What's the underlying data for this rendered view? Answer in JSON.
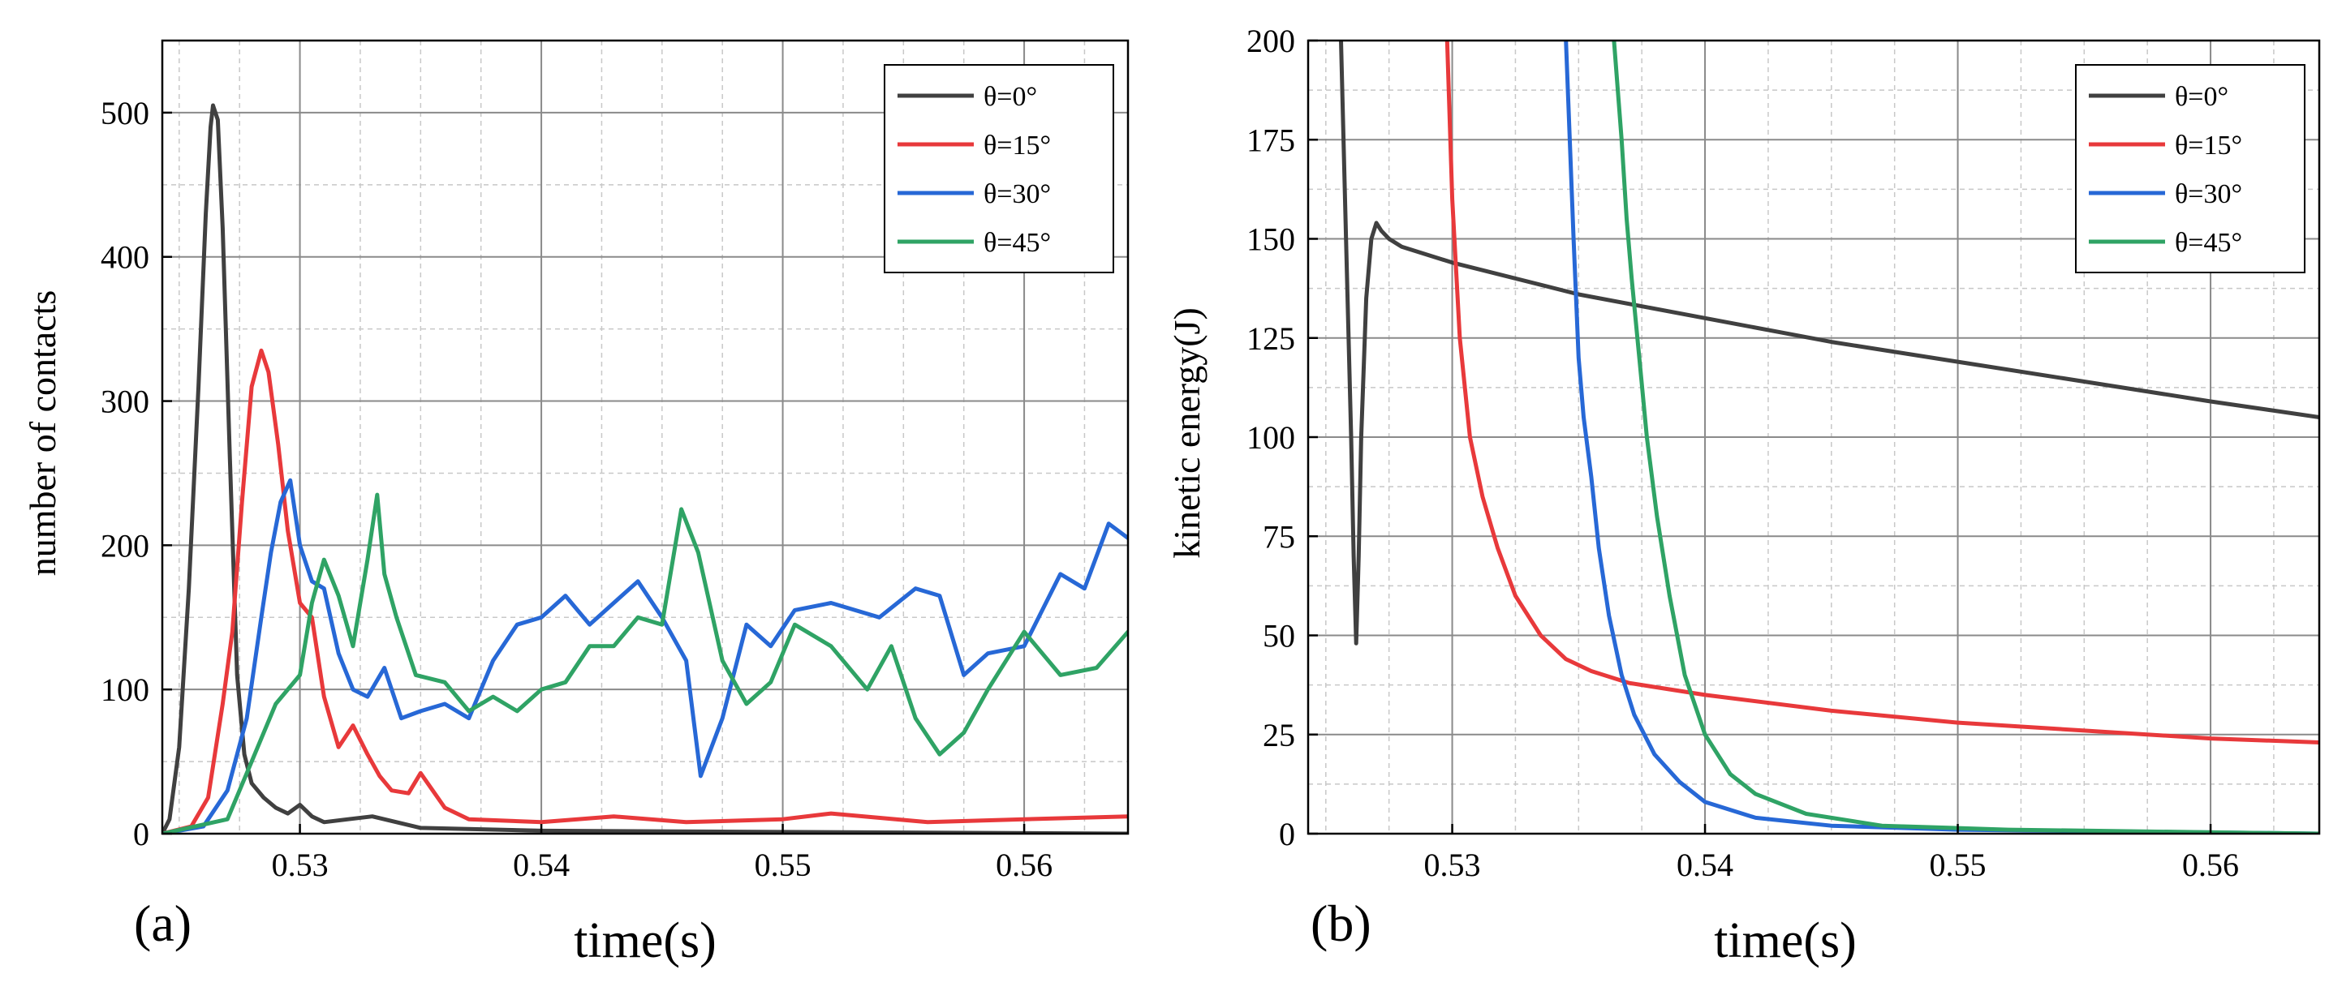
{
  "figure": {
    "colors": {
      "theta0": "#404040",
      "theta15": "#e8393b",
      "theta30": "#2768d6",
      "theta45": "#2fa365"
    }
  },
  "chart_data": [
    {
      "type": "line",
      "panel_label": "(a)",
      "xlabel": "time(s)",
      "ylabel": "number of contacts",
      "xlim": [
        0.5243,
        0.5643
      ],
      "ylim": [
        0,
        550
      ],
      "xticks": [
        0.53,
        0.54,
        0.55,
        0.56
      ],
      "xtick_labels": [
        "0.53",
        "0.54",
        "0.55",
        "0.56"
      ],
      "yticks": [
        0,
        100,
        200,
        300,
        400,
        500
      ],
      "ytick_labels": [
        "0",
        "100",
        "200",
        "300",
        "400",
        "500"
      ],
      "grid": true,
      "legend_position": "top-right",
      "series": [
        {
          "name": "θ=0°",
          "color_key": "theta0",
          "x": [
            0.5243,
            0.5246,
            0.525,
            0.5254,
            0.5258,
            0.5261,
            0.5263,
            0.5264,
            0.5266,
            0.5268,
            0.5271,
            0.5274,
            0.5277,
            0.528,
            0.5285,
            0.529,
            0.5295,
            0.53,
            0.5305,
            0.531,
            0.532,
            0.533,
            0.534,
            0.535,
            0.54,
            0.5643
          ],
          "y": [
            0,
            10,
            60,
            170,
            310,
            430,
            490,
            505,
            495,
            420,
            260,
            110,
            55,
            35,
            25,
            18,
            14,
            20,
            12,
            8,
            10,
            12,
            8,
            4,
            2,
            0
          ]
        },
        {
          "name": "θ=15°",
          "color_key": "theta15",
          "x": [
            0.5243,
            0.5255,
            0.5262,
            0.5268,
            0.5272,
            0.5276,
            0.528,
            0.5284,
            0.5287,
            0.5291,
            0.5295,
            0.53,
            0.5305,
            0.531,
            0.5316,
            0.5322,
            0.5328,
            0.5333,
            0.5338,
            0.5345,
            0.535,
            0.5355,
            0.536,
            0.537,
            0.54,
            0.543,
            0.546,
            0.55,
            0.552,
            0.556,
            0.56,
            0.5643
          ],
          "y": [
            0,
            5,
            25,
            90,
            140,
            230,
            310,
            335,
            320,
            270,
            210,
            160,
            150,
            95,
            60,
            75,
            55,
            40,
            30,
            28,
            42,
            30,
            18,
            10,
            8,
            12,
            8,
            10,
            14,
            8,
            10,
            12
          ]
        },
        {
          "name": "θ=30°",
          "color_key": "theta30",
          "x": [
            0.5243,
            0.526,
            0.527,
            0.5278,
            0.5284,
            0.5288,
            0.5292,
            0.5296,
            0.53,
            0.5305,
            0.531,
            0.5316,
            0.5322,
            0.5328,
            0.5335,
            0.5342,
            0.535,
            0.536,
            0.537,
            0.538,
            0.539,
            0.54,
            0.541,
            0.542,
            0.543,
            0.544,
            0.545,
            0.546,
            0.5466,
            0.5475,
            0.5485,
            0.5495,
            0.5505,
            0.552,
            0.554,
            0.5555,
            0.5565,
            0.5575,
            0.5585,
            0.56,
            0.5615,
            0.5625,
            0.5635,
            0.5643
          ],
          "y": [
            0,
            5,
            30,
            80,
            150,
            195,
            230,
            245,
            200,
            175,
            170,
            125,
            100,
            95,
            115,
            80,
            85,
            90,
            80,
            120,
            145,
            150,
            165,
            145,
            160,
            175,
            150,
            120,
            40,
            80,
            145,
            130,
            155,
            160,
            150,
            170,
            165,
            110,
            125,
            130,
            180,
            170,
            215,
            205
          ]
        },
        {
          "name": "θ=45°",
          "color_key": "theta45",
          "x": [
            0.5243,
            0.527,
            0.528,
            0.529,
            0.53,
            0.5305,
            0.531,
            0.5316,
            0.5322,
            0.5328,
            0.5332,
            0.5335,
            0.534,
            0.5348,
            0.536,
            0.537,
            0.538,
            0.539,
            0.54,
            0.541,
            0.542,
            0.543,
            0.544,
            0.545,
            0.5458,
            0.5465,
            0.5475,
            0.5485,
            0.5495,
            0.5505,
            0.552,
            0.5535,
            0.5545,
            0.5555,
            0.5565,
            0.5575,
            0.5585,
            0.56,
            0.5615,
            0.563,
            0.5643
          ],
          "y": [
            0,
            10,
            50,
            90,
            110,
            160,
            190,
            165,
            130,
            190,
            235,
            180,
            150,
            110,
            105,
            85,
            95,
            85,
            100,
            105,
            130,
            130,
            150,
            145,
            225,
            195,
            120,
            90,
            105,
            145,
            130,
            100,
            130,
            80,
            55,
            70,
            100,
            140,
            110,
            115,
            140
          ]
        }
      ]
    },
    {
      "type": "line",
      "panel_label": "(b)",
      "xlabel": "time(s)",
      "ylabel": "kinetic energy(J)",
      "xlim": [
        0.5243,
        0.5643
      ],
      "ylim": [
        0,
        200
      ],
      "xticks": [
        0.53,
        0.54,
        0.55,
        0.56
      ],
      "xtick_labels": [
        "0.53",
        "0.54",
        "0.55",
        "0.56"
      ],
      "yticks": [
        0,
        25,
        50,
        75,
        100,
        125,
        150,
        175,
        200
      ],
      "ytick_labels": [
        "0",
        "25",
        "50",
        "75",
        "100",
        "125",
        "150",
        "175",
        "200"
      ],
      "grid": true,
      "legend_position": "top-right",
      "series": [
        {
          "name": "θ=0°",
          "color_key": "theta0",
          "x": [
            0.5256,
            0.5258,
            0.526,
            0.5261,
            0.5262,
            0.5263,
            0.5264,
            0.5266,
            0.5268,
            0.527,
            0.5272,
            0.5275,
            0.528,
            0.53,
            0.535,
            0.54,
            0.545,
            0.55,
            0.555,
            0.56,
            0.5643
          ],
          "y": [
            200,
            150,
            100,
            70,
            48,
            70,
            100,
            135,
            150,
            154,
            152,
            150,
            148,
            144,
            136,
            130,
            124,
            119,
            114,
            109,
            105
          ]
        },
        {
          "name": "θ=15°",
          "color_key": "theta15",
          "x": [
            0.5298,
            0.53,
            0.5303,
            0.5307,
            0.5312,
            0.5318,
            0.5325,
            0.5335,
            0.5345,
            0.5355,
            0.537,
            0.54,
            0.545,
            0.55,
            0.555,
            0.56,
            0.5643
          ],
          "y": [
            200,
            160,
            125,
            100,
            85,
            72,
            60,
            50,
            44,
            41,
            38,
            35,
            31,
            28,
            26,
            24,
            23
          ]
        },
        {
          "name": "θ=30°",
          "color_key": "theta30",
          "x": [
            0.5345,
            0.5348,
            0.535,
            0.5352,
            0.5355,
            0.5358,
            0.5362,
            0.5367,
            0.5372,
            0.538,
            0.539,
            0.54,
            0.542,
            0.545,
            0.55,
            0.5643
          ],
          "y": [
            200,
            150,
            120,
            105,
            90,
            72,
            55,
            40,
            30,
            20,
            13,
            8,
            4,
            2,
            1,
            0
          ]
        },
        {
          "name": "θ=45°",
          "color_key": "theta45",
          "x": [
            0.5364,
            0.5367,
            0.5369,
            0.5371,
            0.5374,
            0.5377,
            0.5381,
            0.5386,
            0.5392,
            0.54,
            0.541,
            0.542,
            0.544,
            0.547,
            0.552,
            0.5643
          ],
          "y": [
            200,
            175,
            155,
            140,
            120,
            100,
            80,
            60,
            40,
            25,
            15,
            10,
            5,
            2,
            1,
            0
          ]
        }
      ]
    }
  ]
}
